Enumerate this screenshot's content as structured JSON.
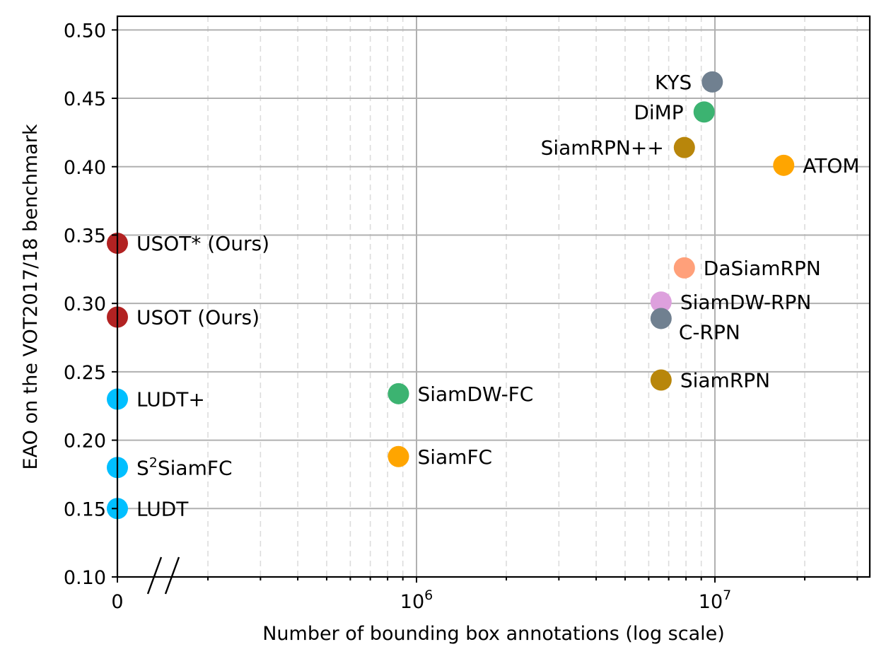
{
  "chart_data": {
    "type": "scatter",
    "title": "",
    "xlabel": "Number of bounding box annotations (log scale)",
    "ylabel": "EAO on the VOT2017/18 benchmark",
    "xscale": "log",
    "xlim": [
      100000,
      33000000
    ],
    "ylim": [
      0.1,
      0.51
    ],
    "y_ticks": [
      "0.10",
      "0.15",
      "0.20",
      "0.25",
      "0.30",
      "0.35",
      "0.40",
      "0.45",
      "0.50"
    ],
    "x_ticks": [
      {
        "label": "0",
        "value": 0,
        "kind": "zero"
      },
      {
        "base": "10",
        "exp": "6",
        "value": 1000000
      },
      {
        "base": "10",
        "exp": "7",
        "value": 10000000
      }
    ],
    "axis_break": "between 0 and 10^6",
    "grid": true,
    "points": [
      {
        "label": "USOT* (Ours)",
        "x": 0,
        "y": 0.344,
        "color": "#b22222",
        "label_pos": "right"
      },
      {
        "label": "USOT (Ours)",
        "x": 0,
        "y": 0.29,
        "color": "#b22222",
        "label_pos": "right"
      },
      {
        "label": "LUDT+",
        "x": 0,
        "y": 0.23,
        "color": "#00bfff",
        "label_pos": "right"
      },
      {
        "label": "SiamFC",
        "label_prefix": "S",
        "label_sup": "2",
        "x": 0,
        "y": 0.18,
        "color": "#00bfff",
        "label_pos": "right"
      },
      {
        "label": "LUDT",
        "x": 0,
        "y": 0.15,
        "color": "#00bfff",
        "label_pos": "right"
      },
      {
        "label": "SiamDW-FC",
        "x": 870000,
        "y": 0.234,
        "color": "#3cb371",
        "label_pos": "right"
      },
      {
        "label": "SiamFC",
        "x": 870000,
        "y": 0.188,
        "color": "#ffa500",
        "label_pos": "right"
      },
      {
        "label": "KYS",
        "x": 9800000,
        "y": 0.462,
        "color": "#708090",
        "label_pos": "left"
      },
      {
        "label": "DiMP",
        "x": 9200000,
        "y": 0.44,
        "color": "#3cb371",
        "label_pos": "left"
      },
      {
        "label": "SiamRPN++",
        "x": 7900000,
        "y": 0.414,
        "color": "#b8860b",
        "label_pos": "left"
      },
      {
        "label": "ATOM",
        "x": 17000000,
        "y": 0.401,
        "color": "#ffa500",
        "label_pos": "right"
      },
      {
        "label": "DaSiamRPN",
        "x": 7900000,
        "y": 0.326,
        "color": "#ffa07a",
        "label_pos": "right"
      },
      {
        "label": "SiamDW-RPN",
        "x": 6600000,
        "y": 0.301,
        "color": "#dda0dd",
        "label_pos": "right"
      },
      {
        "label": "C-RPN",
        "x": 6600000,
        "y": 0.289,
        "color": "#708090",
        "label_pos": "below-right"
      },
      {
        "label": "SiamRPN",
        "x": 6600000,
        "y": 0.244,
        "color": "#b8860b",
        "label_pos": "right"
      }
    ]
  }
}
